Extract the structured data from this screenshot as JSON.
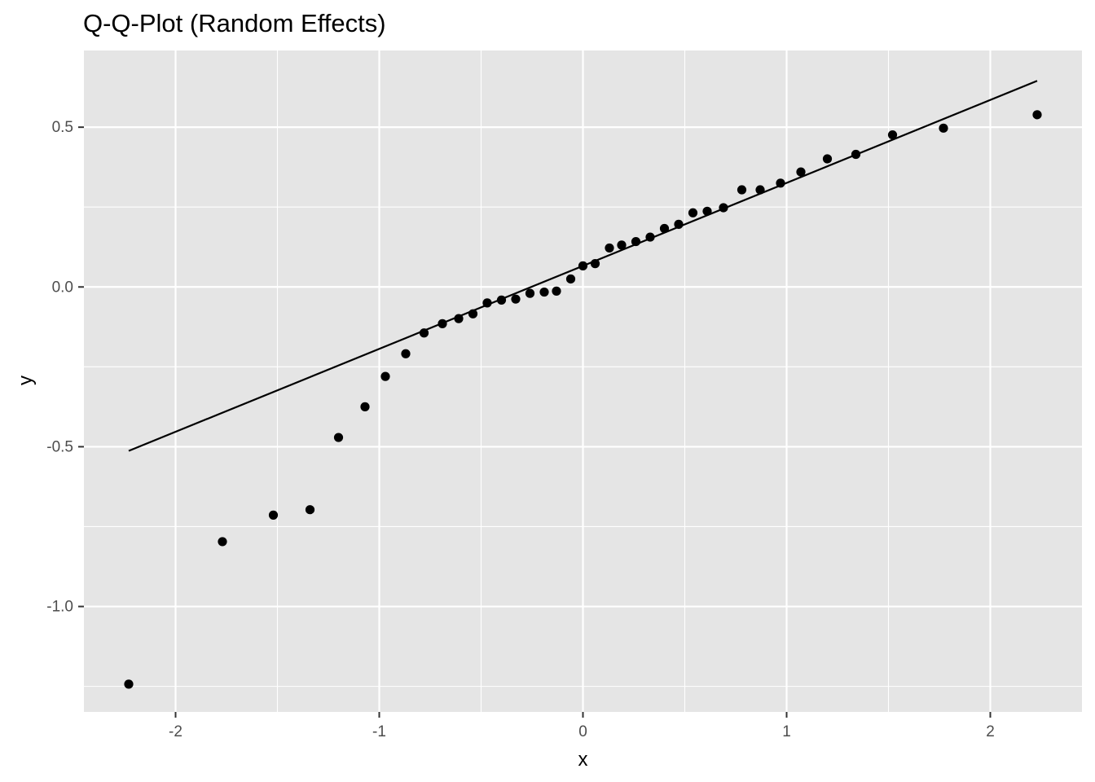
{
  "chart_data": {
    "type": "scatter",
    "title": "Q-Q-Plot (Random Effects)",
    "xlabel": "x",
    "ylabel": "y",
    "xlim": [
      -2.45,
      2.45
    ],
    "ylim": [
      -1.33,
      0.74
    ],
    "x_major_ticks": [
      -2,
      -1,
      0,
      1,
      2
    ],
    "x_tick_labels": [
      "-2",
      "-1",
      "0",
      "1",
      "2"
    ],
    "y_major_ticks": [
      -1.0,
      -0.5,
      0.0,
      0.5
    ],
    "y_tick_labels": [
      "-1.0",
      "-0.5",
      "0.0",
      "0.5"
    ],
    "x_minor_ticks": [
      -1.5,
      -0.5,
      0.5,
      1.5
    ],
    "y_minor_ticks": [
      -1.25,
      -0.75,
      -0.25,
      0.25
    ],
    "grid": true,
    "colors": {
      "panel": "#e5e5e5",
      "grid": "#ffffff",
      "points": "#000000",
      "line": "#000000"
    },
    "reference_line": {
      "x": [
        -2.23,
        2.23
      ],
      "y": [
        -0.513,
        0.645
      ]
    },
    "series": [
      {
        "name": "Random Effects",
        "points": [
          {
            "x": -2.23,
            "y": -1.243
          },
          {
            "x": -1.77,
            "y": -0.797
          },
          {
            "x": -1.52,
            "y": -0.714
          },
          {
            "x": -1.34,
            "y": -0.697
          },
          {
            "x": -1.2,
            "y": -0.471
          },
          {
            "x": -1.07,
            "y": -0.375
          },
          {
            "x": -0.97,
            "y": -0.28
          },
          {
            "x": -0.87,
            "y": -0.209
          },
          {
            "x": -0.78,
            "y": -0.144
          },
          {
            "x": -0.69,
            "y": -0.115
          },
          {
            "x": -0.61,
            "y": -0.099
          },
          {
            "x": -0.54,
            "y": -0.084
          },
          {
            "x": -0.47,
            "y": -0.05
          },
          {
            "x": -0.4,
            "y": -0.041
          },
          {
            "x": -0.33,
            "y": -0.038
          },
          {
            "x": -0.26,
            "y": -0.02
          },
          {
            "x": -0.19,
            "y": -0.016
          },
          {
            "x": -0.13,
            "y": -0.013
          },
          {
            "x": -0.06,
            "y": 0.025
          },
          {
            "x": 0.0,
            "y": 0.066
          },
          {
            "x": 0.06,
            "y": 0.073
          },
          {
            "x": 0.13,
            "y": 0.122
          },
          {
            "x": 0.19,
            "y": 0.131
          },
          {
            "x": 0.26,
            "y": 0.142
          },
          {
            "x": 0.33,
            "y": 0.156
          },
          {
            "x": 0.4,
            "y": 0.183
          },
          {
            "x": 0.47,
            "y": 0.196
          },
          {
            "x": 0.54,
            "y": 0.232
          },
          {
            "x": 0.61,
            "y": 0.237
          },
          {
            "x": 0.69,
            "y": 0.248
          },
          {
            "x": 0.78,
            "y": 0.304
          },
          {
            "x": 0.87,
            "y": 0.304
          },
          {
            "x": 0.97,
            "y": 0.325
          },
          {
            "x": 1.07,
            "y": 0.36
          },
          {
            "x": 1.2,
            "y": 0.401
          },
          {
            "x": 1.34,
            "y": 0.415
          },
          {
            "x": 1.52,
            "y": 0.476
          },
          {
            "x": 1.77,
            "y": 0.497
          },
          {
            "x": 2.23,
            "y": 0.539
          }
        ]
      }
    ]
  }
}
